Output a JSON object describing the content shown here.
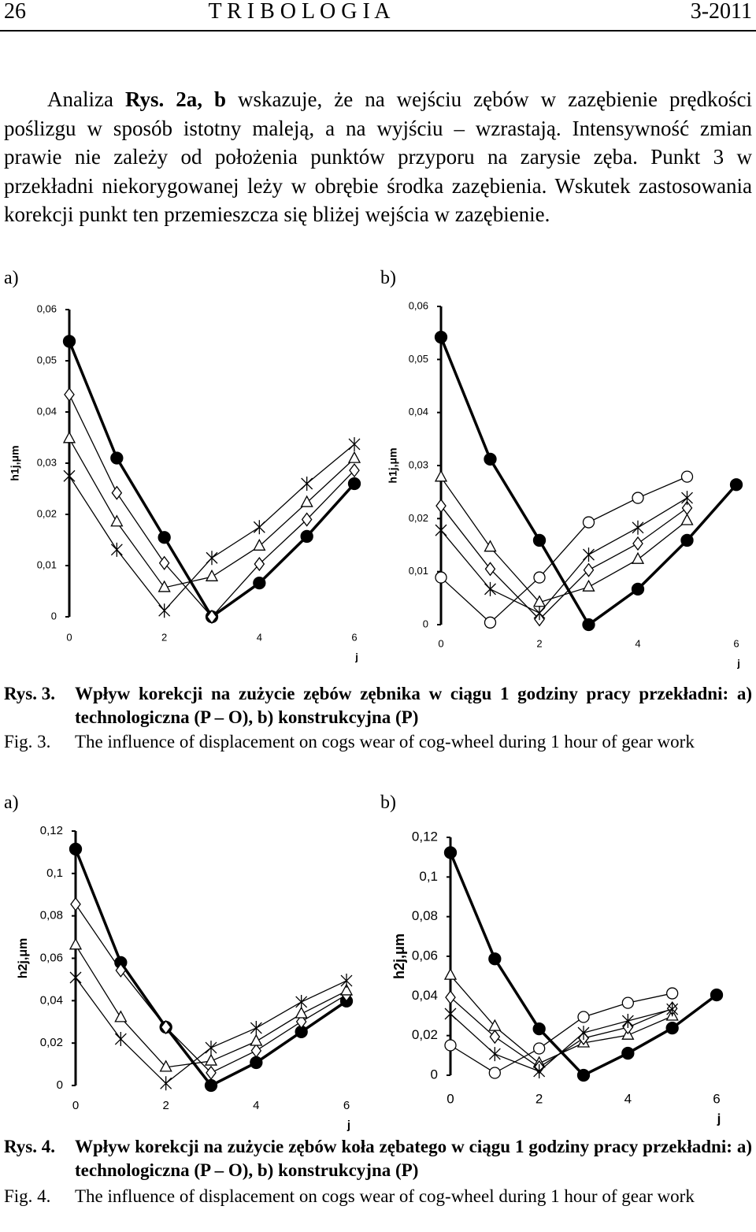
{
  "header": {
    "page": "26",
    "journal": "T R I B O L O G I A",
    "issue": "3-2011"
  },
  "paragraph": [
    "Analiza ",
    "Rys. 2a, b",
    " wskazuje, że na wejściu zębów w zazębienie prędkości poślizgu w sposób istotny maleją, a na wyjściu – wzrastają. Intensywność zmian prawie nie zależy od położenia punktów przyporu na zarysie zęba. Punkt 3 w przekładni niekorygowanej leży w obrębie środka zazębienia. Wskutek zastosowania korekcji punkt ten przemieszcza się bliżej wejścia w zazębienie."
  ],
  "figures": [
    {
      "panel_labels": [
        "a)",
        "b)"
      ],
      "caption_pl": {
        "label": "Rys. 3.",
        "text": "Wpływ korekcji na zużycie zębów zębnika w ciągu 1 godziny pracy przekładni: a) technologiczna (P – O), b) konstrukcyjna (P)"
      },
      "caption_en": {
        "label": "Fig. 3.",
        "text": "The influence of displacement on cogs wear of cog-wheel during 1 hour of gear work"
      }
    },
    {
      "panel_labels": [
        "a)",
        "b)"
      ],
      "caption_pl": {
        "label": "Rys. 4.",
        "text": "Wpływ korekcji na zużycie zębów koła zębatego w ciągu 1 godziny pracy przekładni: a) technologiczna (P – O), b) konstrukcyjna (P)"
      },
      "caption_en": {
        "label": "Fig. 4.",
        "text": "The influence of displacement on cogs wear of cog-wheel during 1 hour of gear work"
      }
    }
  ],
  "chart_data": [
    {
      "type": "line",
      "x_label": "j",
      "y_label": "h1j,μm",
      "x": [
        0,
        1,
        2,
        3,
        4,
        5,
        6
      ],
      "xlim": [
        0,
        6
      ],
      "xticks": [
        0,
        2,
        4,
        6
      ],
      "ylim": [
        0,
        0.06
      ],
      "yticks": [
        0,
        {
          "value": 0.01,
          "label": "0,01"
        },
        {
          "value": 0.02,
          "label": "0,02"
        },
        {
          "value": 0.03,
          "label": "0,03"
        },
        {
          "value": 0.04,
          "label": "0,04"
        },
        {
          "value": 0.05,
          "label": "0,05"
        },
        {
          "value": 0.06,
          "label": "0,06"
        }
      ],
      "series": [
        {
          "color": "#000000",
          "marker": "filled-circle",
          "values": [
            0.0538,
            0.031,
            0.0155,
            0,
            0.0066,
            0.0157,
            0.026
          ]
        },
        {
          "color": "#000000",
          "marker": "diamond",
          "values": [
            0.0434,
            0.0242,
            0.0105,
            0,
            0.0103,
            0.019,
            0.0286
          ]
        },
        {
          "color": "#000000",
          "marker": "triangle",
          "values": [
            0.0348,
            0.0185,
            0.0057,
            0.0078,
            0.0138,
            0.0223,
            0.0309
          ]
        },
        {
          "color": "#000000",
          "marker": "star",
          "values": [
            0.0275,
            0.0131,
            0.0012,
            0.0115,
            0.0175,
            0.026,
            0.0337
          ]
        }
      ]
    },
    {
      "type": "line",
      "x_label": "j",
      "y_label": "h1j,μm",
      "x": [
        0,
        1,
        2,
        3,
        4,
        5,
        6
      ],
      "xlim": [
        0,
        6
      ],
      "xticks": [
        0,
        2,
        4,
        6
      ],
      "ylim": [
        0,
        0.06
      ],
      "yticks": [
        0,
        {
          "value": 0.01,
          "label": "0,01"
        },
        {
          "value": 0.02,
          "label": "0,02"
        },
        {
          "value": 0.03,
          "label": "0,03"
        },
        {
          "value": 0.04,
          "label": "0,04"
        },
        {
          "value": 0.05,
          "label": "0,05"
        },
        {
          "value": 0.06,
          "label": "0,06"
        }
      ],
      "series": [
        {
          "color": "#000000",
          "marker": "filled-circle",
          "values": [
            0.0542,
            0.0312,
            0.0159,
            0,
            0.0067,
            0.0159,
            0.0264
          ]
        },
        {
          "color": "#000000",
          "marker": "circle",
          "values": [
            0.0089,
            0.0004,
            0.0089,
            0.0193,
            0.0239,
            0.0279,
            null
          ]
        },
        {
          "color": "#000000",
          "marker": "triangle",
          "values": [
            0.0278,
            0.0146,
            0.0042,
            0.0071,
            0.0123,
            0.0196,
            null
          ]
        },
        {
          "color": "#000000",
          "marker": "diamond",
          "values": [
            0.0224,
            0.0105,
            0.001,
            0.0103,
            0.0153,
            0.022,
            null
          ]
        },
        {
          "color": "#000000",
          "marker": "star",
          "values": [
            0.0178,
            0.0067,
            0.0022,
            0.0132,
            0.0183,
            0.0239,
            null
          ]
        }
      ]
    },
    {
      "type": "line",
      "x_label": "j",
      "y_label": "h2j,μm",
      "x": [
        0,
        1,
        2,
        3,
        4,
        5,
        6
      ],
      "xlim": [
        0,
        6
      ],
      "xticks": [
        0,
        2,
        4,
        6
      ],
      "ylim": [
        0,
        0.12
      ],
      "yticks": [
        0,
        {
          "value": 0.02,
          "label": "0,02"
        },
        {
          "value": 0.04,
          "label": "0,04"
        },
        {
          "value": 0.06,
          "label": "0,06"
        },
        {
          "value": 0.08,
          "label": "0,08"
        },
        {
          "value": 0.1,
          "label": "0,1"
        },
        {
          "value": 0.12,
          "label": "0,12"
        }
      ],
      "series": [
        {
          "color": "#000000",
          "marker": "filled-circle",
          "values": [
            0.1115,
            0.058,
            0.0275,
            0,
            0.0108,
            0.0253,
            0.0398
          ]
        },
        {
          "color": "#000000",
          "marker": "diamond",
          "values": [
            0.0855,
            0.0543,
            0.0275,
            0.006,
            0.0164,
            0.0301,
            0.0428
          ]
        },
        {
          "color": "#000000",
          "marker": "triangle",
          "values": [
            0.0662,
            0.032,
            0.0086,
            0.0115,
            0.0208,
            0.0338,
            0.0446
          ]
        },
        {
          "color": "#000000",
          "marker": "star",
          "values": [
            0.0509,
            0.0219,
            0.001,
            0.0178,
            0.0271,
            0.0394,
            0.0494
          ]
        }
      ]
    },
    {
      "type": "line",
      "x_label": "j",
      "y_label": "h2j,μm",
      "x": [
        0,
        1,
        2,
        3,
        4,
        5,
        6
      ],
      "xlim": [
        0,
        6
      ],
      "xticks": [
        0,
        2,
        4,
        6
      ],
      "ylim": [
        0,
        0.12
      ],
      "yticks": [
        0,
        {
          "value": 0.02,
          "label": "0,02"
        },
        {
          "value": 0.04,
          "label": "0,04"
        },
        {
          "value": 0.06,
          "label": "0,06"
        },
        {
          "value": 0.08,
          "label": "0,08"
        },
        {
          "value": 0.1,
          "label": "0,1"
        },
        {
          "value": 0.12,
          "label": "0,12"
        }
      ],
      "series": [
        {
          "color": "#000000",
          "marker": "filled-circle",
          "values": [
            0.1123,
            0.0587,
            0.0234,
            0,
            0.0111,
            0.0238,
            0.0405
          ]
        },
        {
          "color": "#000000",
          "marker": "circle",
          "values": [
            0.0151,
            0.0012,
            0.0135,
            0.0294,
            0.0365,
            0.0413,
            null
          ]
        },
        {
          "color": "#000000",
          "marker": "triangle",
          "values": [
            0.0504,
            0.0246,
            0.006,
            0.0163,
            0.0202,
            0.0298,
            null
          ]
        },
        {
          "color": "#000000",
          "marker": "diamond",
          "values": [
            0.0393,
            0.0194,
            0.004,
            0.0187,
            0.0242,
            0.0337,
            null
          ]
        },
        {
          "color": "#000000",
          "marker": "star",
          "values": [
            0.031,
            0.0107,
            0.002,
            0.0214,
            0.0274,
            0.0333,
            null
          ]
        }
      ]
    }
  ]
}
